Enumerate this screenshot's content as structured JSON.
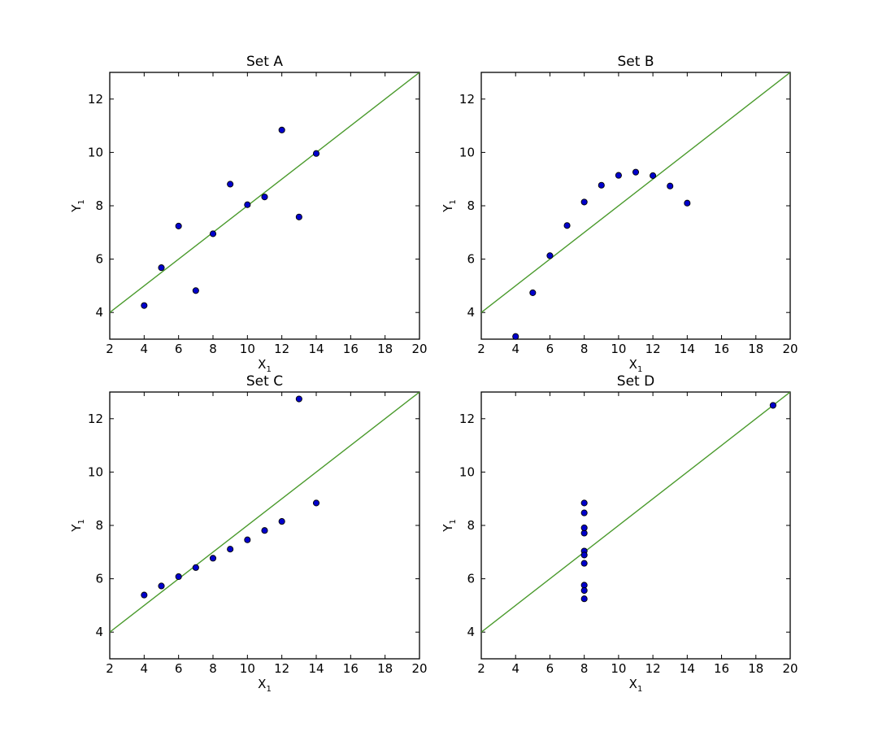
{
  "chart_data": [
    {
      "type": "scatter",
      "title": "Set A",
      "xlabel": "X",
      "xlabel_sub": "1",
      "ylabel": "Y",
      "ylabel_sub": "1",
      "xlim": [
        2,
        20
      ],
      "ylim": [
        3,
        13
      ],
      "xticks": [
        2,
        4,
        6,
        8,
        10,
        12,
        14,
        16,
        18,
        20
      ],
      "yticks": [
        4,
        6,
        8,
        10,
        12
      ],
      "grid": false,
      "fit_line": {
        "intercept": 3,
        "slope": 0.5,
        "color": "#4a9a2c"
      },
      "marker_color": "#0000cc",
      "x": [
        10,
        8,
        13,
        9,
        11,
        14,
        6,
        4,
        12,
        7,
        5
      ],
      "y": [
        8.04,
        6.95,
        7.58,
        8.81,
        8.33,
        9.96,
        7.24,
        4.26,
        10.84,
        4.82,
        5.68
      ]
    },
    {
      "type": "scatter",
      "title": "Set B",
      "xlabel": "X",
      "xlabel_sub": "1",
      "ylabel": "Y",
      "ylabel_sub": "1",
      "xlim": [
        2,
        20
      ],
      "ylim": [
        3,
        13
      ],
      "xticks": [
        2,
        4,
        6,
        8,
        10,
        12,
        14,
        16,
        18,
        20
      ],
      "yticks": [
        4,
        6,
        8,
        10,
        12
      ],
      "grid": false,
      "fit_line": {
        "intercept": 3,
        "slope": 0.5,
        "color": "#4a9a2c"
      },
      "marker_color": "#0000cc",
      "x": [
        10,
        8,
        13,
        9,
        11,
        14,
        6,
        4,
        12,
        7,
        5
      ],
      "y": [
        9.14,
        8.14,
        8.74,
        8.77,
        9.26,
        8.1,
        6.13,
        3.1,
        9.13,
        7.26,
        4.74
      ]
    },
    {
      "type": "scatter",
      "title": "Set C",
      "xlabel": "X",
      "xlabel_sub": "1",
      "ylabel": "Y",
      "ylabel_sub": "1",
      "xlim": [
        2,
        20
      ],
      "ylim": [
        3,
        13
      ],
      "xticks": [
        2,
        4,
        6,
        8,
        10,
        12,
        14,
        16,
        18,
        20
      ],
      "yticks": [
        4,
        6,
        8,
        10,
        12
      ],
      "grid": false,
      "fit_line": {
        "intercept": 3,
        "slope": 0.5,
        "color": "#4a9a2c"
      },
      "marker_color": "#0000cc",
      "x": [
        10,
        8,
        13,
        9,
        11,
        14,
        6,
        4,
        12,
        7,
        5
      ],
      "y": [
        7.46,
        6.77,
        12.74,
        7.11,
        7.81,
        8.84,
        6.08,
        5.39,
        8.15,
        6.42,
        5.73
      ]
    },
    {
      "type": "scatter",
      "title": "Set D",
      "xlabel": "X",
      "xlabel_sub": "1",
      "ylabel": "Y",
      "ylabel_sub": "1",
      "xlim": [
        2,
        20
      ],
      "ylim": [
        3,
        13
      ],
      "xticks": [
        2,
        4,
        6,
        8,
        10,
        12,
        14,
        16,
        18,
        20
      ],
      "yticks": [
        4,
        6,
        8,
        10,
        12
      ],
      "grid": false,
      "fit_line": {
        "intercept": 3,
        "slope": 0.5,
        "color": "#4a9a2c"
      },
      "marker_color": "#0000cc",
      "x": [
        8,
        8,
        8,
        8,
        8,
        8,
        8,
        19,
        8,
        8,
        8
      ],
      "y": [
        6.58,
        5.76,
        7.71,
        8.84,
        8.47,
        7.04,
        5.25,
        12.5,
        5.56,
        7.91,
        6.89
      ]
    }
  ]
}
